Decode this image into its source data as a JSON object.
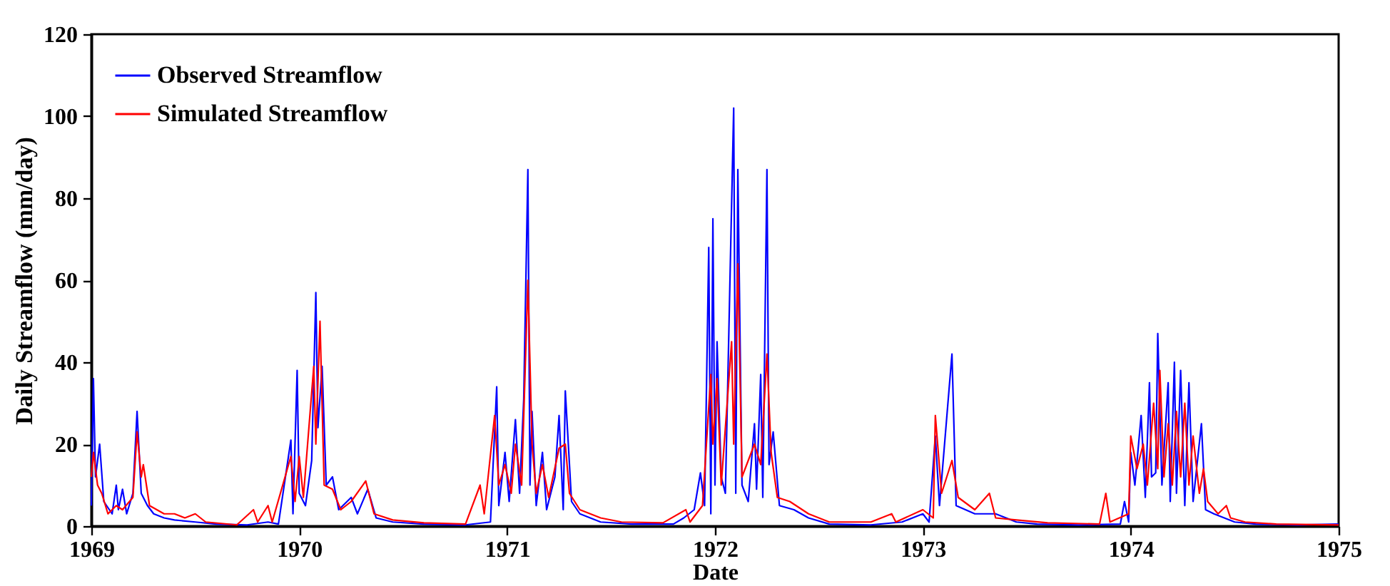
{
  "chart_data": {
    "type": "line",
    "xlabel": "Date",
    "ylabel": "Daily Streamflow (mm/day)",
    "xlim": [
      1969,
      1975
    ],
    "xticks": [
      1969,
      1970,
      1971,
      1972,
      1973,
      1974,
      1975
    ],
    "ylim": [
      0,
      120
    ],
    "yticks": [
      0,
      20,
      40,
      60,
      80,
      100,
      120
    ],
    "grid": false,
    "legend": "top left",
    "marker": "none",
    "line_style": "solid",
    "series": [
      {
        "name": "Observed Streamflow",
        "color": "#0000ff",
        "x": [
          1969.0,
          1969.01,
          1969.02,
          1969.04,
          1969.06,
          1969.1,
          1969.12,
          1969.13,
          1969.15,
          1969.17,
          1969.2,
          1969.22,
          1969.24,
          1969.27,
          1969.3,
          1969.35,
          1969.4,
          1969.5,
          1969.6,
          1969.75,
          1969.85,
          1969.9,
          1969.96,
          1969.97,
          1969.99,
          1970.0,
          1970.03,
          1970.06,
          1970.08,
          1970.09,
          1970.11,
          1970.13,
          1970.16,
          1970.19,
          1970.25,
          1970.28,
          1970.33,
          1970.37,
          1970.45,
          1970.6,
          1970.8,
          1970.92,
          1970.95,
          1970.96,
          1970.99,
          1971.01,
          1971.04,
          1971.06,
          1971.08,
          1971.1,
          1971.11,
          1971.12,
          1971.14,
          1971.17,
          1971.19,
          1971.23,
          1971.25,
          1971.27,
          1971.28,
          1971.31,
          1971.35,
          1971.45,
          1971.6,
          1971.8,
          1971.85,
          1971.9,
          1971.93,
          1971.95,
          1971.97,
          1971.98,
          1971.99,
          1972.0,
          1972.01,
          1972.03,
          1972.05,
          1972.09,
          1972.1,
          1972.11,
          1972.13,
          1972.16,
          1972.19,
          1972.2,
          1972.22,
          1972.23,
          1972.25,
          1972.26,
          1972.28,
          1972.31,
          1972.38,
          1972.45,
          1972.55,
          1972.75,
          1972.9,
          1973.0,
          1973.03,
          1973.06,
          1973.08,
          1973.14,
          1973.16,
          1973.25,
          1973.35,
          1973.45,
          1973.55,
          1973.75,
          1973.95,
          1973.97,
          1973.99,
          1974.0,
          1974.02,
          1974.05,
          1974.07,
          1974.09,
          1974.1,
          1974.12,
          1974.13,
          1974.15,
          1974.18,
          1974.19,
          1974.21,
          1974.22,
          1974.24,
          1974.26,
          1974.28,
          1974.3,
          1974.34,
          1974.36,
          1974.4,
          1974.5,
          1974.6,
          1974.8,
          1975.0
        ],
        "values": [
          5,
          36,
          12,
          20,
          6,
          3,
          10,
          4,
          9,
          3,
          8,
          28,
          8,
          5,
          3,
          2,
          1.5,
          1,
          0.5,
          0.3,
          1,
          0.5,
          21,
          3,
          38,
          8,
          5,
          16,
          57,
          24,
          39,
          10,
          12,
          4,
          7,
          3,
          9,
          2,
          1,
          0.5,
          0.3,
          1,
          34,
          5,
          18,
          6,
          26,
          8,
          31,
          87,
          10,
          28,
          5,
          18,
          4,
          12,
          27,
          4,
          33,
          6,
          3,
          1,
          0.5,
          0.5,
          2,
          4,
          13,
          5,
          68,
          3,
          75,
          10,
          45,
          12,
          8,
          102,
          8,
          87,
          10,
          6,
          25,
          9,
          37,
          7,
          87,
          15,
          23,
          5,
          4,
          2,
          0.5,
          0.3,
          1,
          3,
          1,
          22,
          5,
          42,
          5,
          3,
          3,
          1,
          0.5,
          0.3,
          0.5,
          6,
          1,
          18,
          10,
          27,
          7,
          35,
          12,
          13,
          47,
          10,
          35,
          6,
          40,
          8,
          38,
          5,
          35,
          6,
          25,
          4,
          3,
          1,
          0.5,
          0.3,
          0.5
        ]
      },
      {
        "name": "Simulated Streamflow",
        "color": "#ff0000",
        "x": [
          1969.0,
          1969.01,
          1969.03,
          1969.05,
          1969.08,
          1969.12,
          1969.15,
          1969.2,
          1969.22,
          1969.24,
          1969.25,
          1969.28,
          1969.35,
          1969.4,
          1969.45,
          1969.5,
          1969.55,
          1969.7,
          1969.78,
          1969.8,
          1969.85,
          1969.87,
          1969.96,
          1969.98,
          1970.0,
          1970.02,
          1970.07,
          1970.08,
          1970.1,
          1970.12,
          1970.16,
          1970.2,
          1970.25,
          1970.32,
          1970.36,
          1970.45,
          1970.6,
          1970.8,
          1970.87,
          1970.89,
          1970.94,
          1970.96,
          1970.99,
          1971.02,
          1971.04,
          1971.07,
          1971.1,
          1971.12,
          1971.14,
          1971.17,
          1971.2,
          1971.25,
          1971.28,
          1971.3,
          1971.35,
          1971.45,
          1971.55,
          1971.75,
          1971.86,
          1971.88,
          1971.94,
          1971.98,
          1971.99,
          1972.01,
          1972.03,
          1972.08,
          1972.09,
          1972.11,
          1972.13,
          1972.19,
          1972.22,
          1972.25,
          1972.27,
          1972.3,
          1972.36,
          1972.45,
          1972.55,
          1972.75,
          1972.85,
          1972.87,
          1973.0,
          1973.05,
          1973.06,
          1973.09,
          1973.14,
          1973.17,
          1973.25,
          1973.32,
          1973.35,
          1973.45,
          1973.6,
          1973.85,
          1973.88,
          1973.9,
          1973.99,
          1974.0,
          1974.03,
          1974.06,
          1974.08,
          1974.11,
          1974.13,
          1974.14,
          1974.16,
          1974.18,
          1974.2,
          1974.22,
          1974.24,
          1974.26,
          1974.28,
          1974.3,
          1974.33,
          1974.35,
          1974.37,
          1974.42,
          1974.46,
          1974.48,
          1974.55,
          1974.7,
          1975.0
        ],
        "values": [
          12,
          18,
          10,
          8,
          3,
          5,
          4,
          7,
          23,
          12,
          15,
          5,
          3,
          3,
          2,
          3,
          1,
          0.3,
          4,
          1,
          5,
          1,
          17,
          6,
          17,
          7,
          39,
          20,
          50,
          10,
          9,
          4,
          6,
          11,
          3,
          1.5,
          0.8,
          0.5,
          10,
          3,
          27,
          10,
          15,
          8,
          20,
          10,
          60,
          20,
          8,
          15,
          7,
          19,
          20,
          8,
          4,
          2,
          1,
          0.8,
          4,
          1,
          5,
          37,
          20,
          36,
          10,
          45,
          20,
          64,
          12,
          20,
          15,
          42,
          18,
          7,
          6,
          3,
          1,
          1,
          3,
          1,
          4,
          2,
          27,
          8,
          16,
          7,
          4,
          8,
          2,
          1.5,
          0.8,
          0.5,
          8,
          1,
          3,
          22,
          14,
          20,
          10,
          30,
          14,
          38,
          12,
          25,
          10,
          28,
          12,
          30,
          10,
          22,
          8,
          14,
          6,
          3,
          5,
          2,
          1,
          0.5,
          0.3
        ]
      }
    ]
  }
}
